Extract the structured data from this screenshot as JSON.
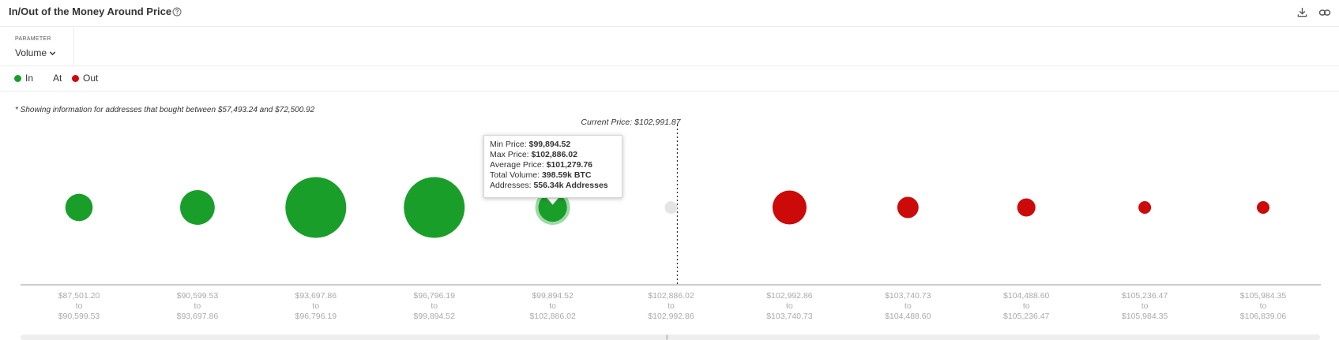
{
  "header": {
    "title": "In/Out of the Money Around Price",
    "icons": {
      "help": "help-circle-icon",
      "download": "download-icon",
      "link": "link-icon"
    }
  },
  "parameter": {
    "label": "PARAMETER",
    "value": "Volume"
  },
  "legend": {
    "items": [
      {
        "label": "In",
        "color": "#1a9e2a"
      },
      {
        "label": "At",
        "color": ""
      },
      {
        "label": "Out",
        "color": "#cc0a0a"
      }
    ]
  },
  "note": "* Showing information for addresses that bought between $57,493.24 and $72,500.92",
  "tooltip": {
    "min_label": "Min Price:",
    "min_value": "$99,894.52",
    "max_label": "Max Price:",
    "max_value": "$102,886.02",
    "avg_label": "Average Price:",
    "avg_value": "$101,279.76",
    "vol_label": "Total Volume:",
    "vol_value": "398.59k BTC",
    "addr_label": "Addresses:",
    "addr_value": "556.34k Addresses"
  },
  "chart_data": {
    "type": "scatter",
    "current_price_label": "Current Price: $102,991.87",
    "current_price_after_bin": 5,
    "bubble_encodes": "Total Volume (BTC)",
    "bins": [
      {
        "from": "$87,501.20",
        "to_word": "to",
        "to": "$90,599.53",
        "status": "In",
        "relative_size": 0.45
      },
      {
        "from": "$90,599.53",
        "to_word": "to",
        "to": "$93,697.86",
        "status": "In",
        "relative_size": 0.57
      },
      {
        "from": "$93,697.86",
        "to_word": "to",
        "to": "$96,796.19",
        "status": "In",
        "relative_size": 1.0
      },
      {
        "from": "$96,796.19",
        "to_word": "to",
        "to": "$99,894.52",
        "status": "In",
        "relative_size": 1.0
      },
      {
        "from": "$99,894.52",
        "to_word": "to",
        "to": "$102,886.02",
        "status": "In",
        "relative_size": 0.47,
        "total_volume_btc": 398590,
        "highlighted": true
      },
      {
        "from": "$102,886.02",
        "to_word": "to",
        "to": "$102,992.86",
        "status": "At",
        "relative_size": 0.05
      },
      {
        "from": "$102,992.86",
        "to_word": "to",
        "to": "$103,740.73",
        "status": "Out",
        "relative_size": 0.56
      },
      {
        "from": "$103,740.73",
        "to_word": "to",
        "to": "$104,488.60",
        "status": "Out",
        "relative_size": 0.35
      },
      {
        "from": "$104,488.60",
        "to_word": "to",
        "to": "$105,236.47",
        "status": "Out",
        "relative_size": 0.3
      },
      {
        "from": "$105,236.47",
        "to_word": "to",
        "to": "$105,984.35",
        "status": "Out",
        "relative_size": 0.2
      },
      {
        "from": "$105,984.35",
        "to_word": "to",
        "to": "$106,839.06",
        "status": "Out",
        "relative_size": 0.19
      }
    ],
    "colors": {
      "In": "#1a9e2a",
      "At": "#e4e4e4",
      "Out": "#cc0a0a",
      "highlight_ring": "#9fd9a6"
    }
  }
}
